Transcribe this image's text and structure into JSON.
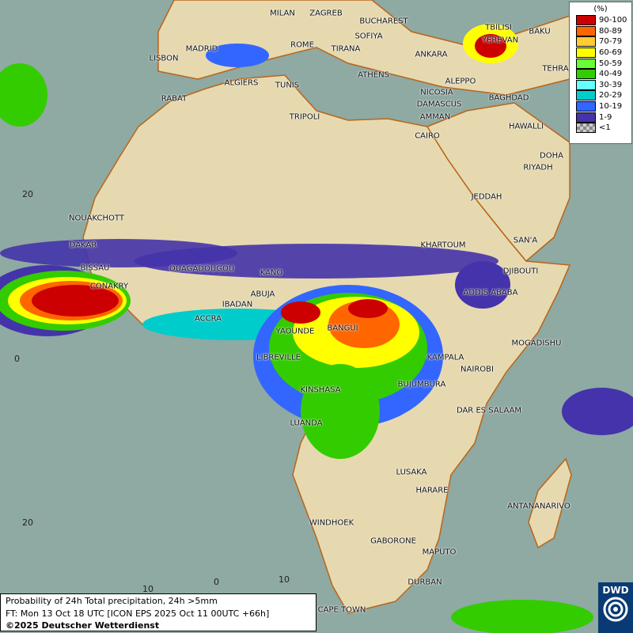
{
  "title": "Probability of 24h Total precipitation, 24h >5mm",
  "forecast_time": "FT: Mon 13 Oct 18 UTC [ICON EPS 2025 Oct 11 00UTC +66h]",
  "copyright": "©2025 Deutscher Wetterdienst",
  "logo_text": "DWD",
  "legend": {
    "unit": "(%)",
    "items": [
      {
        "label": "90-100",
        "color": "#cc0000"
      },
      {
        "label": "80-89",
        "color": "#ff6600"
      },
      {
        "label": "70-79",
        "color": "#ffcc33"
      },
      {
        "label": "60-69",
        "color": "#ffff00"
      },
      {
        "label": "50-59",
        "color": "#66ff33"
      },
      {
        "label": "40-49",
        "color": "#33cc00"
      },
      {
        "label": "30-39",
        "color": "#66ffff"
      },
      {
        "label": "20-29",
        "color": "#00cccc"
      },
      {
        "label": "10-19",
        "color": "#3366ff"
      },
      {
        "label": "1-9",
        "color": "#4433aa"
      },
      {
        "label": "<1",
        "color": "#aaaaaa"
      }
    ]
  },
  "grid_labels": {
    "lat_n20": "20",
    "lat_0": "0",
    "lat_s20": "20",
    "lon_w10": "10",
    "lon_0": "0",
    "lon_e10": "10"
  },
  "cities": [
    "MILAN",
    "ZAGREB",
    "BUCHAREST",
    "ROME",
    "SOFIYA",
    "TIRANA",
    "ANKARA",
    "TBILISI",
    "YEREVAN",
    "BAKU",
    "TEHRA",
    "LISBON",
    "MADRID",
    "ALGIERS",
    "TUNIS",
    "ATHENS",
    "ALEPPO",
    "NICOSIA",
    "BAGHDAD",
    "DAMASCUS",
    "AMMAN",
    "TRIPOLI",
    "RABAT",
    "CAIRO",
    "HAWALLI",
    "DOHA",
    "RIYADH",
    "JEDDAH",
    "NOUAKCHOTT",
    "DAKAR",
    "SAN'A",
    "KHARTOUM",
    "BISSAU",
    "CONAKRY",
    "OUAGADOUGOU",
    "DJIBOUTI",
    "KANO",
    "ABUJA",
    "ADDIS ABABA",
    "IBADAN",
    "ACCRA",
    "BANGUI",
    "YAOUNDE",
    "MOGADISHU",
    "LIBREVILLE",
    "KAMPALA",
    "NAIROBI",
    "BUJUMBURA",
    "KINSHASA",
    "DAR ES SALAAM",
    "LUANDA",
    "LUSAKA",
    "HARARE",
    "ANTANANARIVO",
    "WINDHOEK",
    "GABORONE",
    "MAPUTO",
    "DURBAN",
    "CAPE TOWN"
  ]
}
